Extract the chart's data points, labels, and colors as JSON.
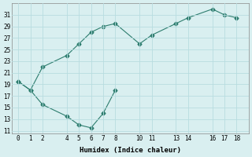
{
  "xlabel": "Humidex (Indice chaleur)",
  "line1_x": [
    0,
    1,
    2,
    4,
    5,
    6,
    7,
    8,
    10,
    11,
    13,
    14,
    16,
    17,
    18
  ],
  "line1_y": [
    19.5,
    18.0,
    22.0,
    24.0,
    26.0,
    28.0,
    29.0,
    29.5,
    26.0,
    27.5,
    29.5,
    30.5,
    32.0,
    31.0,
    30.5
  ],
  "line2_x": [
    0,
    1,
    2,
    4,
    5,
    6,
    7,
    8
  ],
  "line2_y": [
    19.5,
    18.0,
    15.5,
    13.5,
    12.0,
    11.5,
    14.0,
    18.0
  ],
  "line_color": "#2d7d6e",
  "marker": "D",
  "marker_size": 2.5,
  "bg_color": "#d9eff0",
  "grid_color": "#b8dde0",
  "xlim": [
    -0.5,
    19.0
  ],
  "ylim": [
    10.5,
    33.0
  ],
  "xticks": [
    0,
    1,
    2,
    4,
    5,
    6,
    7,
    8,
    10,
    11,
    13,
    14,
    16,
    17,
    18
  ],
  "yticks": [
    11,
    13,
    15,
    17,
    19,
    21,
    23,
    25,
    27,
    29,
    31
  ],
  "tick_fontsize": 5.5,
  "xlabel_fontsize": 6.5,
  "line_width": 0.8
}
